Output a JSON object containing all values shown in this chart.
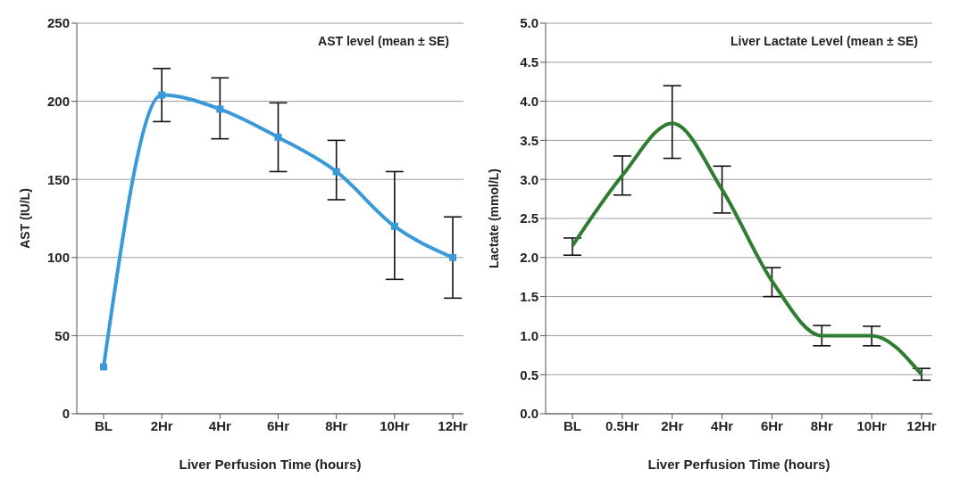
{
  "chart_data": [
    {
      "type": "line",
      "title": "AST level (mean ± SE)",
      "xlabel": "Liver Perfusion Time (hours)",
      "ylabel": "AST (IU/L)",
      "categories": [
        "BL",
        "2Hr",
        "4Hr",
        "6Hr",
        "8Hr",
        "10Hr",
        "12Hr"
      ],
      "series": [
        {
          "color": "#3a9ad9",
          "values": [
            30,
            204,
            195,
            177,
            155,
            120,
            100
          ],
          "errors": [
            null,
            [
              187,
              221
            ],
            [
              176,
              215
            ],
            [
              155,
              199
            ],
            [
              137,
              175
            ],
            [
              86,
              155
            ],
            [
              74,
              126
            ]
          ]
        }
      ],
      "ylim": [
        0,
        250
      ],
      "yticks": [
        0,
        50,
        100,
        150,
        200,
        250
      ],
      "grid": "y",
      "marker": "square",
      "line_style": "solid"
    },
    {
      "type": "line",
      "title": "Liver Lactate Level (mean ± SE)",
      "xlabel": "Liver Perfusion Time (hours)",
      "ylabel": "Lactate (mmol/L)",
      "categories": [
        "BL",
        "0.5Hr",
        "2Hr",
        "4Hr",
        "6Hr",
        "8Hr",
        "10Hr",
        "12Hr"
      ],
      "series": [
        {
          "color": "#2e7d32",
          "values": [
            2.15,
            3.05,
            3.72,
            2.87,
            1.7,
            1.0,
            1.0,
            0.5
          ],
          "errors": [
            [
              2.03,
              2.25
            ],
            [
              2.8,
              3.3
            ],
            [
              3.27,
              4.2
            ],
            [
              2.57,
              3.17
            ],
            [
              1.5,
              1.87
            ],
            [
              0.87,
              1.13
            ],
            [
              0.87,
              1.12
            ],
            [
              0.43,
              0.58
            ]
          ]
        }
      ],
      "ylim": [
        0,
        5
      ],
      "yticks": [
        {
          "value": 0,
          "label": "0.0"
        },
        0.5,
        {
          "value": 1,
          "label": "1.0"
        },
        1.5,
        {
          "value": 2,
          "label": "2.0"
        },
        2.5,
        {
          "value": 3,
          "label": "3.0"
        },
        3.5,
        {
          "value": 4,
          "label": "4.0"
        },
        4.5,
        {
          "value": 5,
          "label": "5.0"
        }
      ],
      "grid": "y",
      "marker": "none",
      "line_style": "solid"
    }
  ]
}
